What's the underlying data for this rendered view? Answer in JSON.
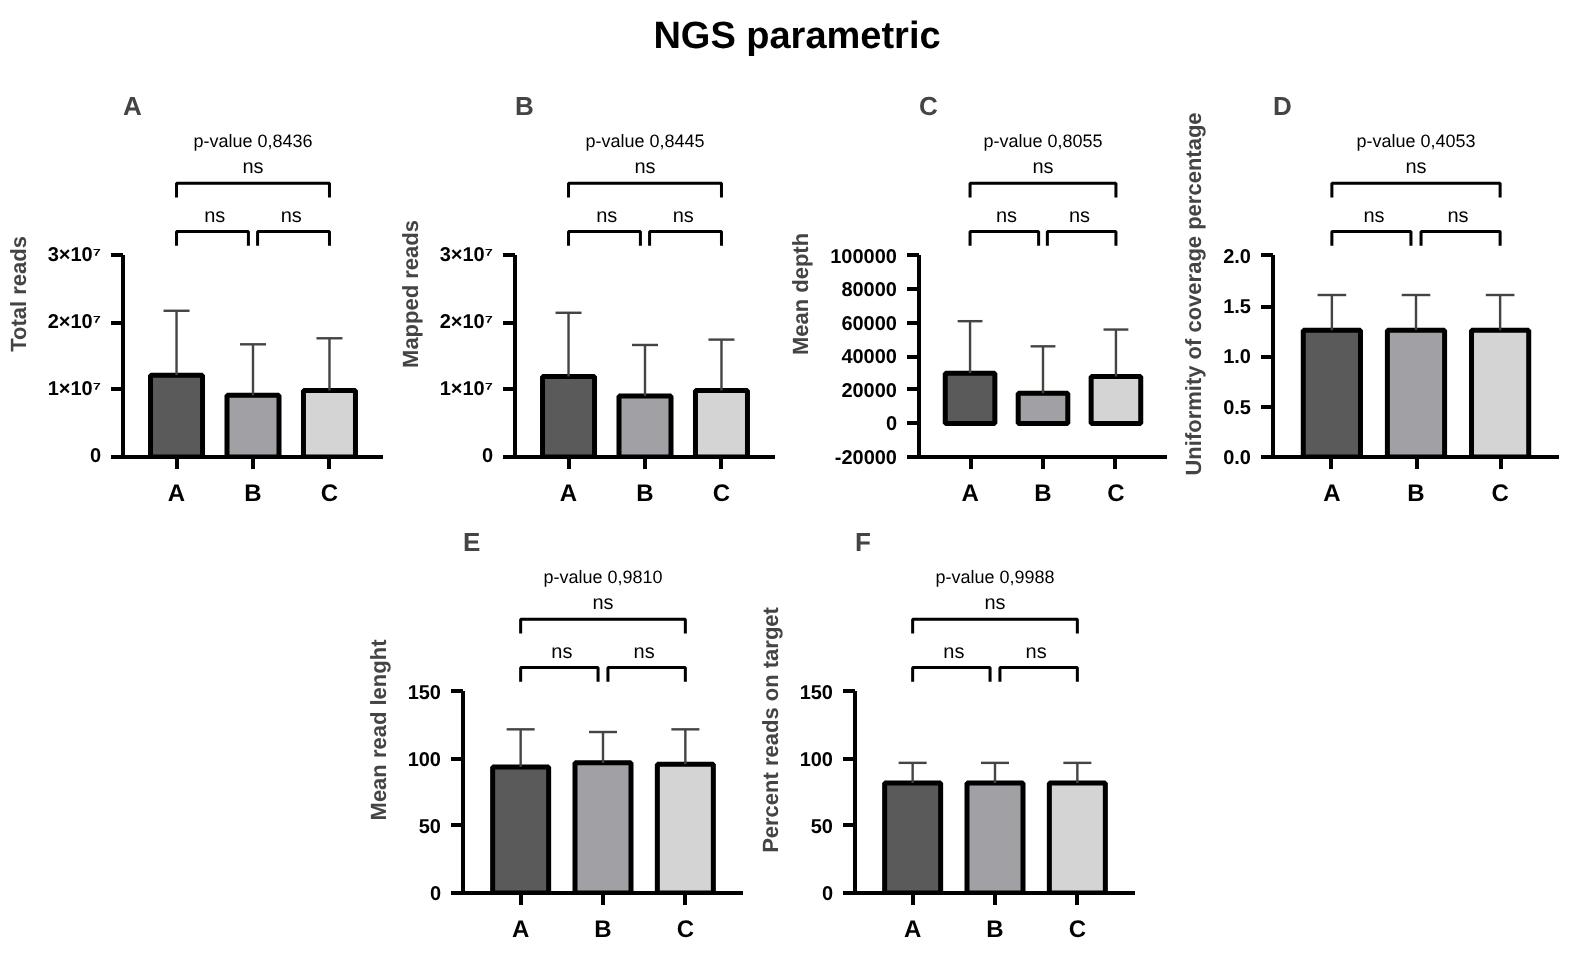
{
  "chart_data": [
    {
      "type": "other",
      "title": "NGS parametric"
    },
    {
      "type": "bar",
      "title": "A",
      "ylabel": "Total reads",
      "categories": [
        "A",
        "B",
        "C"
      ],
      "values": [
        12200000,
        9200000,
        9900000
      ],
      "colors": [
        "#5a5a5a",
        "#a0a0a5",
        "#d4d4d4"
      ],
      "errors": [
        [
          12200000,
          21800000
        ],
        [
          9200000,
          16800000
        ],
        [
          9900000,
          17700000
        ]
      ],
      "ylim": [
        0,
        30000000
      ],
      "yticks": [
        0,
        {
          "value": 10000000,
          "label": "1×10⁷"
        },
        {
          "value": 20000000,
          "label": "2×10⁷"
        },
        {
          "value": 30000000,
          "label": "3×10⁷"
        }
      ],
      "annotations": [
        "p-value 0,8436",
        "ns",
        "ns",
        "ns"
      ],
      "grid": false
    },
    {
      "type": "bar",
      "title": "B",
      "ylabel": "Mapped reads",
      "categories": [
        "A",
        "B",
        "C"
      ],
      "values": [
        12000000,
        9100000,
        9900000
      ],
      "colors": [
        "#5a5a5a",
        "#a0a0a5",
        "#d4d4d4"
      ],
      "errors": [
        [
          12000000,
          21500000
        ],
        [
          9100000,
          16700000
        ],
        [
          9900000,
          17500000
        ]
      ],
      "ylim": [
        0,
        30000000
      ],
      "yticks": [
        0,
        {
          "value": 10000000,
          "label": "1×10⁷"
        },
        {
          "value": 20000000,
          "label": "2×10⁷"
        },
        {
          "value": 30000000,
          "label": "3×10⁷"
        }
      ],
      "annotations": [
        "p-value 0,8445",
        "ns",
        "ns",
        "ns"
      ],
      "grid": false
    },
    {
      "type": "bar",
      "title": "C",
      "ylabel": "Mean depth",
      "categories": [
        "A",
        "B",
        "C"
      ],
      "values": [
        30000,
        18000,
        28000
      ],
      "colors": [
        "#5a5a5a",
        "#a0a0a5",
        "#d4d4d4"
      ],
      "errors": [
        [
          30000,
          61000
        ],
        [
          18000,
          46000
        ],
        [
          28000,
          56000
        ]
      ],
      "ylim": [
        -20000,
        100000
      ],
      "yticks": [
        -20000,
        0,
        20000,
        40000,
        60000,
        80000,
        100000
      ],
      "annotations": [
        "p-value 0,8055",
        "ns",
        "ns",
        "ns"
      ],
      "grid": false
    },
    {
      "type": "bar",
      "title": "D",
      "ylabel": "Uniformity of coverage percentage",
      "categories": [
        "A",
        "B",
        "C"
      ],
      "values": [
        1.26,
        1.26,
        1.26
      ],
      "colors": [
        "#5a5a5a",
        "#a0a0a5",
        "#d4d4d4"
      ],
      "errors": [
        [
          1.26,
          1.61
        ],
        [
          1.26,
          1.61
        ],
        [
          1.26,
          1.61
        ]
      ],
      "ylim": [
        0,
        2
      ],
      "yticks": [
        {
          "value": 0,
          "label": "0.0"
        },
        {
          "value": 0.5,
          "label": "0.5"
        },
        {
          "value": 1,
          "label": "1.0"
        },
        {
          "value": 1.5,
          "label": "1.5"
        },
        {
          "value": 2,
          "label": "2.0"
        }
      ],
      "annotations": [
        "p-value 0,4053",
        "ns",
        "ns",
        "ns"
      ],
      "grid": false
    },
    {
      "type": "bar",
      "title": "E",
      "ylabel": "Mean read lenght",
      "categories": [
        "A",
        "B",
        "C"
      ],
      "values": [
        94,
        97,
        96
      ],
      "colors": [
        "#5a5a5a",
        "#a0a0a5",
        "#d4d4d4"
      ],
      "errors": [
        [
          94,
          122
        ],
        [
          97,
          120
        ],
        [
          96,
          122
        ]
      ],
      "ylim": [
        0,
        150
      ],
      "yticks": [
        0,
        50,
        100,
        150
      ],
      "annotations": [
        "p-value 0,9810",
        "ns",
        "ns",
        "ns"
      ],
      "grid": false
    },
    {
      "type": "bar",
      "title": "F",
      "ylabel": "Percent reads on target",
      "categories": [
        "A",
        "B",
        "C"
      ],
      "values": [
        82,
        82,
        82
      ],
      "colors": [
        "#5a5a5a",
        "#a0a0a5",
        "#d4d4d4"
      ],
      "errors": [
        [
          82,
          97
        ],
        [
          82,
          97
        ],
        [
          82,
          97
        ]
      ],
      "ylim": [
        0,
        150
      ],
      "yticks": [
        0,
        50,
        100,
        150
      ],
      "annotations": [
        "p-value 0,9988",
        "ns",
        "ns",
        "ns"
      ],
      "grid": false
    }
  ]
}
